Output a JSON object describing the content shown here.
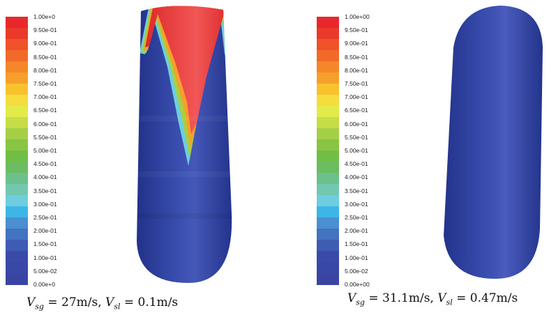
{
  "colorbar": {
    "colors": [
      "#e8282a",
      "#ec3a2a",
      "#f0522a",
      "#f26a2a",
      "#f5862a",
      "#f6a02b",
      "#f7c22e",
      "#f4dd3c",
      "#e3eb4a",
      "#c6dd48",
      "#a4cf46",
      "#88c543",
      "#70be45",
      "#6cbd61",
      "#6cc08b",
      "#72c8ae",
      "#6fcde0",
      "#3bb6e6",
      "#4a8fd0",
      "#4273c0",
      "#3d5cb2",
      "#3a4aa8",
      "#3948a6",
      "#3a44a2"
    ],
    "left_labels": [
      "1.00e+0",
      "9.50e-01",
      "9.00e-01",
      "8.50e-01",
      "8.00e-01",
      "7.50e-01",
      "7.00e-01",
      "6.50e-01",
      "6.00e-01",
      "5.50e-01",
      "5.00e-01",
      "4.50e-01",
      "4.00e-01",
      "3.50e-01",
      "3.00e-01",
      "2.50e-01",
      "2.00e-01",
      "1.50e-01",
      "1.00e-01",
      "5.00e-02",
      "0.00e+0"
    ],
    "right_labels": [
      "1.00e+00",
      "9.50e-01",
      "9.00e-01",
      "8.50e-01",
      "8.00e-01",
      "7.50e-01",
      "7.00e-01",
      "6.50e-01",
      "6.00e-01",
      "5.50e-01",
      "5.00e-01",
      "4.50e-01",
      "4.00e-01",
      "3.50e-01",
      "3.00e-01",
      "2.50e-01",
      "2.00e-01",
      "1.50e-01",
      "1.00e-01",
      "5.00e-02",
      "0.00e+00"
    ]
  },
  "left": {
    "caption": {
      "v1": "V",
      "v1_sub": "sg",
      "v1_rest": " = 27m/s, ",
      "v2": "V",
      "v2_sub": "sl",
      "v2_rest": " = 0.1m/s"
    }
  },
  "right": {
    "caption": {
      "v1": "V",
      "v1_sub": "sg",
      "v1_rest": " = 31.1m/s, ",
      "v2": "V",
      "v2_sub": "sl",
      "v2_rest": " = 0.47m/s"
    }
  },
  "colors": {
    "pipe_blue": "#2b3f9e",
    "liquid_red": "#e33a3a"
  }
}
